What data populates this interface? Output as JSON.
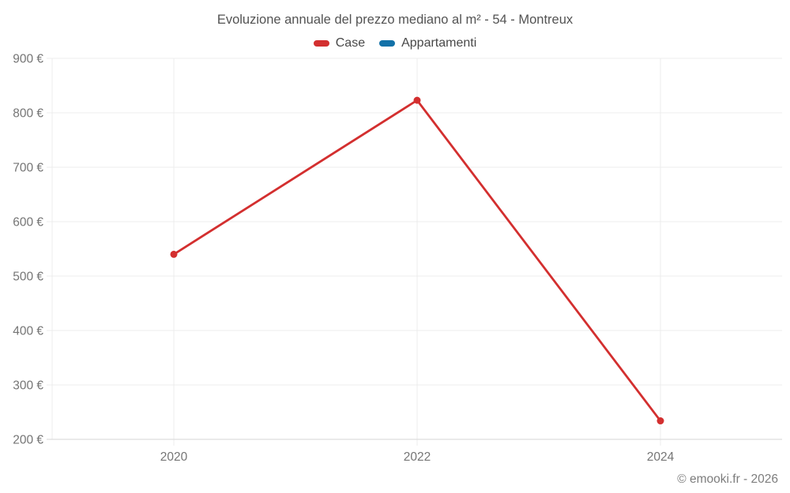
{
  "header": {
    "title": "Evoluzione annuale del prezzo mediano al m² - 54 - Montreux"
  },
  "footer": {
    "credit": "© emooki.fr - 2026"
  },
  "chart_data": {
    "type": "line",
    "title": "Evoluzione annuale del prezzo mediano al m² - 54 - Montreux",
    "categories": [
      "2020",
      "2022",
      "2024"
    ],
    "series": [
      {
        "name": "Case",
        "color": "#d32f2f",
        "values": [
          540,
          823,
          234
        ]
      },
      {
        "name": "Appartamenti",
        "color": "#1271a8",
        "values": []
      }
    ],
    "xlabel": "",
    "ylabel": "",
    "ylim": [
      200,
      900
    ],
    "y_tick_values": [
      900,
      800,
      700,
      600,
      500,
      400,
      300,
      200
    ],
    "y_tick_labels": [
      "900 €",
      "800 €",
      "700 €",
      "600 €",
      "500 €",
      "400 €",
      "300 €",
      "200 €"
    ],
    "grid": true,
    "legend_position": "top",
    "colors": {
      "case_line": "#d32f2f",
      "appartamenti_line": "#1271a8",
      "grid_line": "#ececec",
      "axis_line": "#d6d6d6",
      "tick_label": "#757575",
      "title_text": "#535353",
      "footer_text": "#7d7d7d",
      "background": "#ffffff"
    }
  }
}
